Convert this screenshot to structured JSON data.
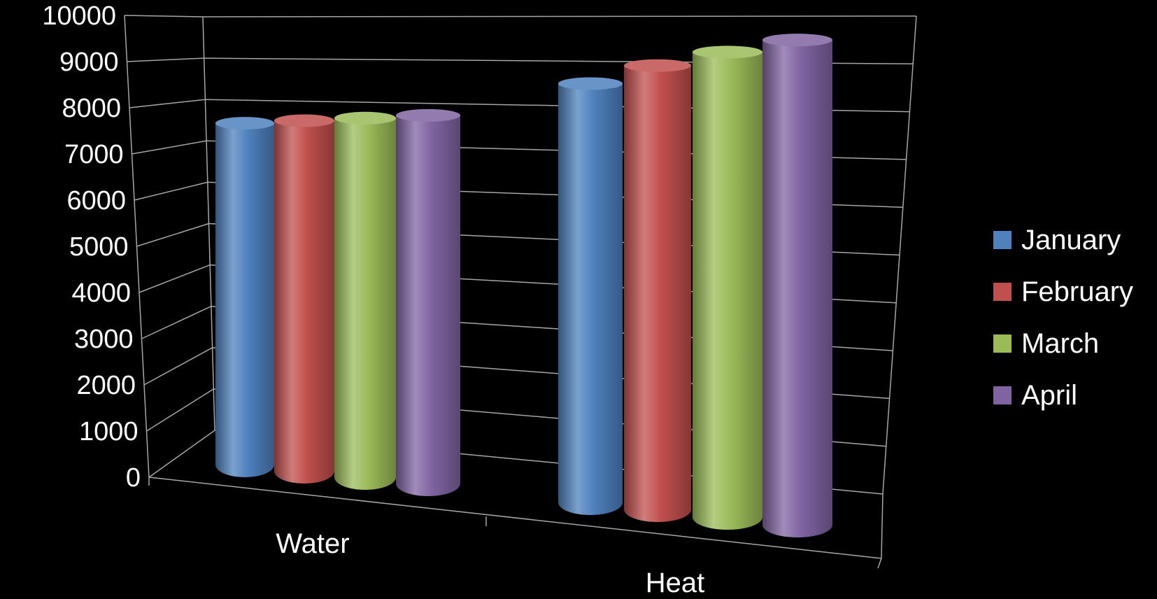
{
  "chart_data": {
    "type": "bar",
    "style": "3d-cylinder",
    "categories": [
      "Water",
      "Heat"
    ],
    "series": [
      {
        "name": "January",
        "values": [
          7600,
          8700
        ],
        "color": "#4F81BD"
      },
      {
        "name": "February",
        "values": [
          7700,
          9100
        ],
        "color": "#C0504D"
      },
      {
        "name": "March",
        "values": [
          7800,
          9400
        ],
        "color": "#9BBB59"
      },
      {
        "name": "April",
        "values": [
          7900,
          9650
        ],
        "color": "#8064A2"
      }
    ],
    "yticks": [
      "0",
      "1000",
      "2000",
      "3000",
      "4000",
      "5000",
      "6000",
      "7000",
      "8000",
      "9000",
      "10000"
    ],
    "ylim": [
      0,
      10000
    ],
    "grid": true,
    "legend_position": "right",
    "background": "#000000",
    "axis_color": "#A6A6A6"
  }
}
